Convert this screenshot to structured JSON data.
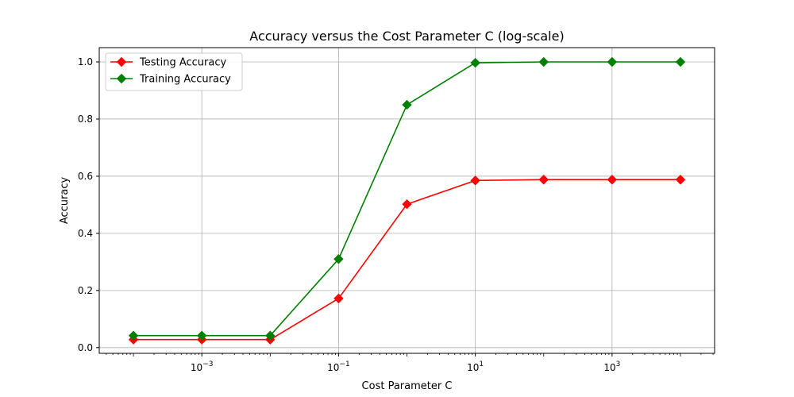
{
  "chart_data": {
    "type": "line",
    "title": "Accuracy versus the Cost Parameter C (log-scale)",
    "xlabel": "Cost Parameter C",
    "ylabel": "Accuracy",
    "xscale": "log",
    "xlim": [
      3.16e-05,
      31600
    ],
    "ylim": [
      -0.02,
      1.05
    ],
    "x": [
      0.0001,
      0.001,
      0.01,
      0.1,
      1,
      10,
      100,
      1000,
      10000
    ],
    "x_ticks": [
      0.001,
      0.1,
      10,
      1000
    ],
    "x_tick_labels": [
      {
        "base": "10",
        "exp": "−3"
      },
      {
        "base": "10",
        "exp": "−1"
      },
      {
        "base": "10",
        "exp": "1"
      },
      {
        "base": "10",
        "exp": "3"
      }
    ],
    "y_ticks": [
      0.0,
      0.2,
      0.4,
      0.6,
      0.8,
      1.0
    ],
    "y_tick_labels": [
      "0.0",
      "0.2",
      "0.4",
      "0.6",
      "0.8",
      "1.0"
    ],
    "grid": true,
    "legend_position": "top-left",
    "series": [
      {
        "name": "Testing Accuracy",
        "color": "#ff0000",
        "marker": "diamond",
        "values": [
          0.028,
          0.028,
          0.028,
          0.172,
          0.502,
          0.585,
          0.588,
          0.588,
          0.588
        ]
      },
      {
        "name": "Training Accuracy",
        "color": "#008000",
        "marker": "diamond",
        "values": [
          0.042,
          0.042,
          0.042,
          0.31,
          0.85,
          0.997,
          1.0,
          1.0,
          1.0
        ]
      }
    ]
  }
}
